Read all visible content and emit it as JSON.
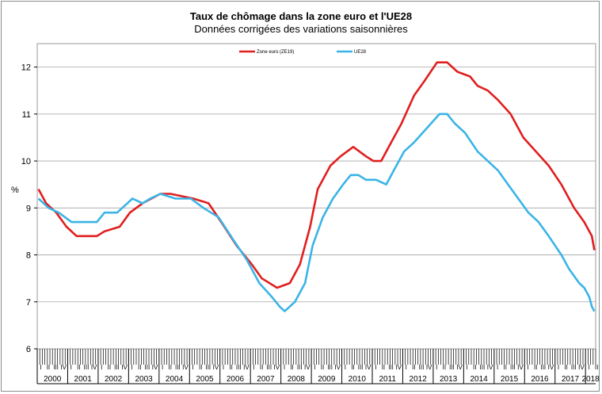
{
  "chart_data": {
    "type": "line",
    "title": "Taux de chômage dans la zone euro et l'UE28",
    "subtitle": "Données corrigées des variations saisonnières",
    "ylabel": "%",
    "ylim": [
      6,
      12.5
    ],
    "yticks": [
      6,
      7,
      8,
      9,
      10,
      11,
      12
    ],
    "grid": "horizontal",
    "legend_position": "top-center",
    "x_start": "2000-01",
    "x_end": "2018-04",
    "quarter_labels": [
      "I",
      "II",
      "III",
      "IV"
    ],
    "years": [
      "2000",
      "2001",
      "2002",
      "2003",
      "2004",
      "2005",
      "2006",
      "2007",
      "2008",
      "2009",
      "2010",
      "2011",
      "2012",
      "2013",
      "2014",
      "2015",
      "2016",
      "2017",
      "2018"
    ],
    "series": [
      {
        "name": "Zone euro (ZE19)",
        "color": "#e01f1f",
        "points": [
          [
            "2000-01",
            9.4
          ],
          [
            "2000-04",
            9.1
          ],
          [
            "2000-08",
            8.9
          ],
          [
            "2000-12",
            8.6
          ],
          [
            "2001-04",
            8.4
          ],
          [
            "2001-12",
            8.4
          ],
          [
            "2002-03",
            8.5
          ],
          [
            "2002-09",
            8.6
          ],
          [
            "2003-01",
            8.9
          ],
          [
            "2003-06",
            9.1
          ],
          [
            "2004-01",
            9.3
          ],
          [
            "2004-05",
            9.3
          ],
          [
            "2005-02",
            9.2
          ],
          [
            "2005-08",
            9.1
          ],
          [
            "2006-01",
            8.7
          ],
          [
            "2006-07",
            8.2
          ],
          [
            "2007-01",
            7.8
          ],
          [
            "2007-05",
            7.5
          ],
          [
            "2007-11",
            7.3
          ],
          [
            "2008-04",
            7.4
          ],
          [
            "2008-08",
            7.8
          ],
          [
            "2008-12",
            8.6
          ],
          [
            "2009-03",
            9.4
          ],
          [
            "2009-08",
            9.9
          ],
          [
            "2009-12",
            10.1
          ],
          [
            "2010-05",
            10.3
          ],
          [
            "2010-10",
            10.1
          ],
          [
            "2011-01",
            10.0
          ],
          [
            "2011-04",
            10.0
          ],
          [
            "2011-08",
            10.4
          ],
          [
            "2011-12",
            10.8
          ],
          [
            "2012-05",
            11.4
          ],
          [
            "2012-09",
            11.7
          ],
          [
            "2013-02",
            12.1
          ],
          [
            "2013-06",
            12.1
          ],
          [
            "2013-10",
            11.9
          ],
          [
            "2014-03",
            11.8
          ],
          [
            "2014-06",
            11.6
          ],
          [
            "2014-10",
            11.5
          ],
          [
            "2015-02",
            11.3
          ],
          [
            "2015-07",
            11.0
          ],
          [
            "2015-12",
            10.5
          ],
          [
            "2016-05",
            10.2
          ],
          [
            "2016-10",
            9.9
          ],
          [
            "2017-03",
            9.5
          ],
          [
            "2017-08",
            9.0
          ],
          [
            "2017-12",
            8.7
          ],
          [
            "2018-03",
            8.4
          ],
          [
            "2018-04",
            8.1
          ]
        ]
      },
      {
        "name": "UE28",
        "color": "#3ab4e6",
        "points": [
          [
            "2000-01",
            9.2
          ],
          [
            "2000-05",
            9.0
          ],
          [
            "2000-09",
            8.9
          ],
          [
            "2001-02",
            8.7
          ],
          [
            "2001-12",
            8.7
          ],
          [
            "2002-03",
            8.9
          ],
          [
            "2002-08",
            8.9
          ],
          [
            "2002-12",
            9.1
          ],
          [
            "2003-02",
            9.2
          ],
          [
            "2003-06",
            9.1
          ],
          [
            "2003-09",
            9.2
          ],
          [
            "2004-01",
            9.3
          ],
          [
            "2004-07",
            9.2
          ],
          [
            "2005-01",
            9.2
          ],
          [
            "2005-06",
            9.0
          ],
          [
            "2005-12",
            8.8
          ],
          [
            "2006-06",
            8.3
          ],
          [
            "2006-11",
            7.9
          ],
          [
            "2007-04",
            7.4
          ],
          [
            "2007-09",
            7.1
          ],
          [
            "2007-12",
            6.9
          ],
          [
            "2008-02",
            6.8
          ],
          [
            "2008-06",
            7.0
          ],
          [
            "2008-10",
            7.4
          ],
          [
            "2009-01",
            8.2
          ],
          [
            "2009-05",
            8.8
          ],
          [
            "2009-09",
            9.2
          ],
          [
            "2010-01",
            9.5
          ],
          [
            "2010-04",
            9.7
          ],
          [
            "2010-07",
            9.7
          ],
          [
            "2010-10",
            9.6
          ],
          [
            "2011-02",
            9.6
          ],
          [
            "2011-06",
            9.5
          ],
          [
            "2011-09",
            9.8
          ],
          [
            "2012-01",
            10.2
          ],
          [
            "2012-05",
            10.4
          ],
          [
            "2012-10",
            10.7
          ],
          [
            "2013-03",
            11.0
          ],
          [
            "2013-06",
            11.0
          ],
          [
            "2013-09",
            10.8
          ],
          [
            "2014-01",
            10.6
          ],
          [
            "2014-06",
            10.2
          ],
          [
            "2014-10",
            10.0
          ],
          [
            "2015-02",
            9.8
          ],
          [
            "2015-06",
            9.5
          ],
          [
            "2015-10",
            9.2
          ],
          [
            "2016-02",
            8.9
          ],
          [
            "2016-06",
            8.7
          ],
          [
            "2016-10",
            8.4
          ],
          [
            "2017-03",
            8.0
          ],
          [
            "2017-06",
            7.7
          ],
          [
            "2017-10",
            7.4
          ],
          [
            "2017-12",
            7.3
          ],
          [
            "2018-02",
            7.1
          ],
          [
            "2018-03",
            6.9
          ],
          [
            "2018-04",
            6.8
          ]
        ]
      }
    ]
  }
}
